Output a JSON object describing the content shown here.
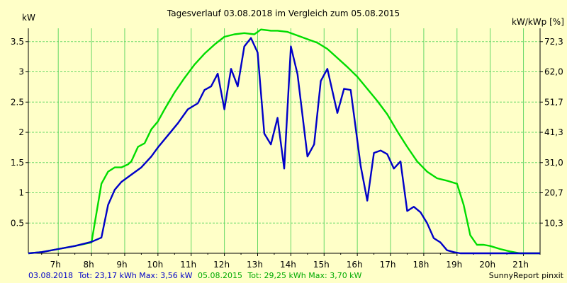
{
  "chart_data": {
    "type": "line",
    "title": "Tagesverlauf 03.08.2018 im Vergleich zum 05.08.2015",
    "ylabel_left": "kW",
    "ylabel_right": "kW/kWp [%]",
    "x_ticks": [
      "7h",
      "8h",
      "9h",
      "10h",
      "11h",
      "12h",
      "13h",
      "14h",
      "15h",
      "16h",
      "17h",
      "18h",
      "19h",
      "20h",
      "21h"
    ],
    "x_tick_values": [
      7,
      8,
      9,
      10,
      11,
      12,
      13,
      14,
      15,
      16,
      17,
      18,
      19,
      20,
      21
    ],
    "xlim": [
      6.1,
      21.5
    ],
    "ylim": [
      0,
      3.72
    ],
    "y_ticks": [
      0.5,
      1,
      1.5,
      2,
      2.5,
      3,
      3.5
    ],
    "y_tick_labels": [
      "0.5",
      "1",
      "1.5",
      "2",
      "2.5",
      "3",
      "3.5"
    ],
    "y2_ticks": [
      0.5,
      1,
      1.5,
      2,
      2.5,
      3,
      3.5
    ],
    "y2_tick_labels": [
      "10,3",
      "20,7",
      "31,0",
      "41,3",
      "51,7",
      "62,0",
      "72,3"
    ],
    "grid": true,
    "series": [
      {
        "name": "03.08.2018",
        "color": "#0000c8",
        "x": [
          6.1,
          6.5,
          7.0,
          7.5,
          8.0,
          8.3,
          8.5,
          8.7,
          8.9,
          9.2,
          9.5,
          9.8,
          10.0,
          10.3,
          10.6,
          10.9,
          11.2,
          11.4,
          11.6,
          11.8,
          12.0,
          12.2,
          12.4,
          12.6,
          12.8,
          13.0,
          13.2,
          13.4,
          13.6,
          13.8,
          14.0,
          14.2,
          14.5,
          14.7,
          14.9,
          15.1,
          15.4,
          15.6,
          15.8,
          16.1,
          16.3,
          16.5,
          16.7,
          16.9,
          17.1,
          17.3,
          17.5,
          17.7,
          17.9,
          18.1,
          18.3,
          18.5,
          18.7,
          18.9,
          19.1,
          19.3,
          19.6,
          19.9,
          20.1,
          20.4,
          20.7,
          21.0,
          21.5
        ],
        "y": [
          0,
          0.02,
          0.07,
          0.12,
          0.19,
          0.26,
          0.8,
          1.05,
          1.18,
          1.3,
          1.42,
          1.6,
          1.75,
          1.95,
          2.15,
          2.38,
          2.48,
          2.7,
          2.76,
          2.97,
          2.38,
          3.05,
          2.76,
          3.42,
          3.56,
          3.32,
          1.98,
          1.8,
          2.24,
          1.4,
          3.42,
          2.96,
          1.6,
          1.8,
          2.85,
          3.05,
          2.32,
          2.72,
          2.7,
          1.45,
          0.87,
          1.66,
          1.7,
          1.64,
          1.4,
          1.52,
          0.7,
          0.77,
          0.68,
          0.5,
          0.25,
          0.18,
          0.05,
          0.02,
          0,
          0,
          0,
          0,
          0,
          0,
          0,
          0,
          0
        ]
      },
      {
        "name": "05.08.2015",
        "color": "#00dc00",
        "x": [
          6.1,
          6.5,
          7.0,
          7.5,
          8.0,
          8.3,
          8.5,
          8.7,
          8.9,
          9.1,
          9.2,
          9.4,
          9.6,
          9.8,
          10.0,
          10.2,
          10.5,
          10.8,
          11.1,
          11.4,
          11.7,
          12.0,
          12.3,
          12.6,
          12.9,
          13.1,
          13.4,
          13.6,
          13.9,
          14.2,
          14.5,
          14.8,
          15.1,
          15.4,
          15.7,
          16.0,
          16.3,
          16.6,
          16.9,
          17.2,
          17.5,
          17.8,
          18.1,
          18.4,
          18.7,
          19.0,
          19.2,
          19.4,
          19.6,
          19.8,
          20.0,
          20.3,
          20.6,
          20.9,
          21.2,
          21.5
        ],
        "y": [
          0,
          0.02,
          0.07,
          0.12,
          0.18,
          1.15,
          1.35,
          1.42,
          1.42,
          1.47,
          1.52,
          1.76,
          1.82,
          2.05,
          2.18,
          2.38,
          2.66,
          2.9,
          3.12,
          3.3,
          3.45,
          3.58,
          3.62,
          3.64,
          3.62,
          3.7,
          3.68,
          3.68,
          3.66,
          3.6,
          3.54,
          3.48,
          3.38,
          3.23,
          3.08,
          2.92,
          2.72,
          2.52,
          2.3,
          2.02,
          1.76,
          1.52,
          1.35,
          1.24,
          1.2,
          1.15,
          0.8,
          0.3,
          0.14,
          0.14,
          0.12,
          0.07,
          0.03,
          0,
          0,
          0
        ]
      }
    ]
  },
  "footer": {
    "series1_label": "03.08.2018",
    "series1_stats": "Tot: 23,17 kWh Max: 3,56 kW",
    "series2_label": "05.08.2015",
    "series2_stats": "Tot: 29,25 kWh Max: 3,70 kW",
    "credit": "SunnyReport pinxit"
  }
}
